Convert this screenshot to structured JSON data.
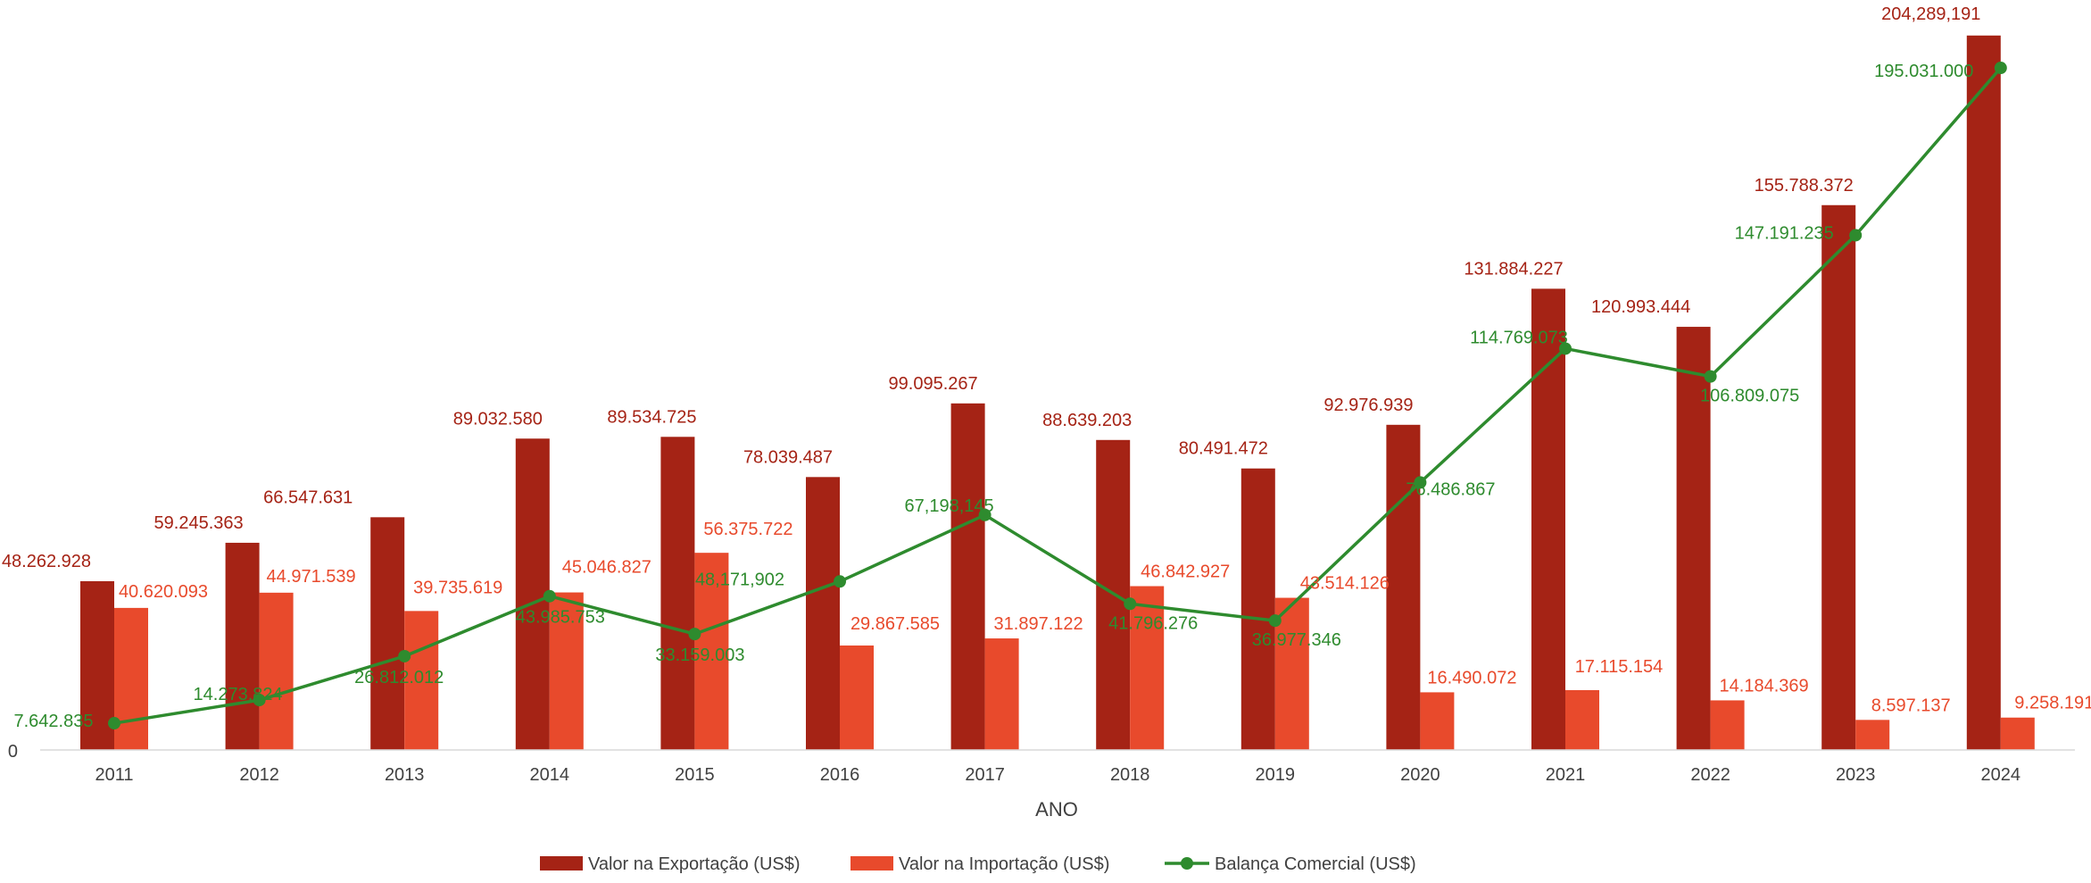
{
  "chart_data": {
    "type": "bar",
    "title": "",
    "xlabel": "ANO",
    "ylabel": "",
    "ylim": [
      0,
      205000000
    ],
    "y_tick_labels": [
      "0"
    ],
    "categories": [
      "2011",
      "2012",
      "2013",
      "2014",
      "2015",
      "2016",
      "2017",
      "2018",
      "2019",
      "2020",
      "2021",
      "2022",
      "2023",
      "2024"
    ],
    "series": [
      {
        "name": "Valor na Exportação (US$)",
        "kind": "bar",
        "color": "#A52315",
        "values": [
          48262928,
          59245363,
          66547631,
          89032580,
          89534725,
          78039487,
          99095267,
          88639203,
          80491472,
          92976939,
          131884227,
          120993444,
          155788372,
          204289191
        ],
        "labels": [
          "48.262.928",
          "59.245.363",
          "66.547.631",
          "89.032.580",
          "89.534.725",
          "78.039.487",
          "99.095.267",
          "88.639.203",
          "80.491.472",
          "92.976.939",
          "131.884.227",
          "120.993.444",
          "155.788.372",
          "204,289,191"
        ]
      },
      {
        "name": "Valor na Importação (US$)",
        "kind": "bar",
        "color": "#E84A2C",
        "values": [
          40620093,
          44971539,
          39735619,
          45046827,
          56375722,
          29867585,
          31897122,
          46842927,
          43514126,
          16490072,
          17115154,
          14184369,
          8597137,
          9258191
        ],
        "labels": [
          "40.620.093",
          "44.971.539",
          "39.735.619",
          "45.046.827",
          "56.375.722",
          "29.867.585",
          "31.897.122",
          "46.842.927",
          "43.514.126",
          "16.490.072",
          "17.115.154",
          "14.184.369",
          "8.597.137",
          "9.258.191"
        ]
      },
      {
        "name": "Balança Comercial (US$)",
        "kind": "line",
        "color": "#2E8B2E",
        "values": [
          7642835,
          14273824,
          26812012,
          43985753,
          33159003,
          48171902,
          67198145,
          41796276,
          36977346,
          76486867,
          114769073,
          106809075,
          147191235,
          195031000
        ],
        "labels": [
          "7.642.835",
          "14.273.824",
          "26.812.012",
          "43.985.753",
          "33.159.003",
          "48,171,902",
          "67,198,145",
          "41.796.276",
          "36.977.346",
          "76.486.867",
          "114.769.073",
          "106.809.075",
          "147.191.235",
          "195.031.000"
        ]
      }
    ],
    "legend": "bottom"
  }
}
